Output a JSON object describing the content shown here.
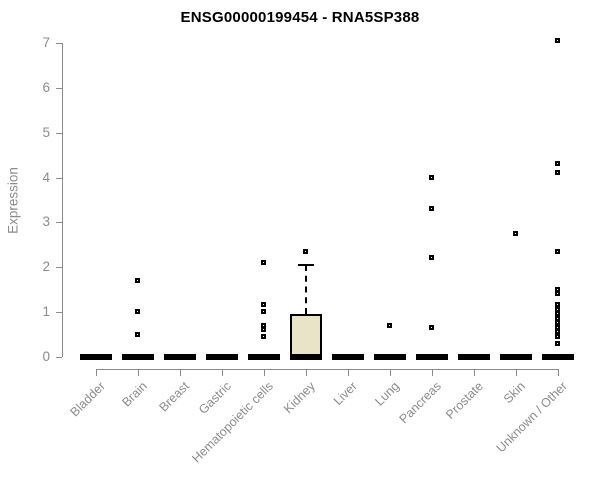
{
  "colors": {
    "box_fill": "#E9E3C8",
    "box_stroke": "#000000",
    "median": "#000000",
    "marker_stroke": "#000000",
    "marker_fill": "#ffffff",
    "axis": "#8B8B8B",
    "tick_text": "#8B8B8B",
    "title_text": "#000000"
  },
  "chart_data": {
    "type": "boxplot",
    "title": "ENSG00000199454 - RNA5SP388",
    "xlabel": "",
    "ylabel": "Expression",
    "ylim": [
      0,
      7
    ],
    "yticks": [
      0,
      1,
      2,
      3,
      4,
      5,
      6,
      7
    ],
    "grid": false,
    "legend": false,
    "categories": [
      "Bladder",
      "Brain",
      "Breast",
      "Gastric",
      "Hematopoietic cells",
      "Kidney",
      "Liver",
      "Lung",
      "Pancreas",
      "Prostate",
      "Skin",
      "Unknown / Other"
    ],
    "boxes": [
      {
        "category": "Bladder",
        "q1": 0,
        "median": 0,
        "q3": 0,
        "whisker_low": 0,
        "whisker_high": 0,
        "outliers": []
      },
      {
        "category": "Brain",
        "q1": 0,
        "median": 0,
        "q3": 0,
        "whisker_low": 0,
        "whisker_high": 0,
        "outliers": [
          1.7,
          1.0,
          0.5
        ]
      },
      {
        "category": "Breast",
        "q1": 0,
        "median": 0,
        "q3": 0,
        "whisker_low": 0,
        "whisker_high": 0,
        "outliers": []
      },
      {
        "category": "Gastric",
        "q1": 0,
        "median": 0,
        "q3": 0,
        "whisker_low": 0,
        "whisker_high": 0,
        "outliers": []
      },
      {
        "category": "Hematopoietic cells",
        "q1": 0,
        "median": 0,
        "q3": 0,
        "whisker_low": 0,
        "whisker_high": 0,
        "outliers": [
          2.1,
          1.15,
          1.0,
          0.7,
          0.6,
          0.45
        ]
      },
      {
        "category": "Kidney",
        "q1": 0,
        "median": 0,
        "q3": 0.95,
        "whisker_low": 0,
        "whisker_high": 2.05,
        "outliers": [
          2.35
        ]
      },
      {
        "category": "Liver",
        "q1": 0,
        "median": 0,
        "q3": 0,
        "whisker_low": 0,
        "whisker_high": 0,
        "outliers": []
      },
      {
        "category": "Lung",
        "q1": 0,
        "median": 0,
        "q3": 0,
        "whisker_low": 0,
        "whisker_high": 0,
        "outliers": [
          0.7
        ]
      },
      {
        "category": "Pancreas",
        "q1": 0,
        "median": 0,
        "q3": 0,
        "whisker_low": 0,
        "whisker_high": 0,
        "outliers": [
          4.0,
          3.3,
          2.2,
          0.65
        ]
      },
      {
        "category": "Prostate",
        "q1": 0,
        "median": 0,
        "q3": 0,
        "whisker_low": 0,
        "whisker_high": 0,
        "outliers": []
      },
      {
        "category": "Skin",
        "q1": 0,
        "median": 0,
        "q3": 0,
        "whisker_low": 0,
        "whisker_high": 0,
        "outliers": [
          2.75
        ]
      },
      {
        "category": "Unknown / Other",
        "q1": 0,
        "median": 0,
        "q3": 0,
        "whisker_low": 0,
        "whisker_high": 0,
        "outliers": [
          7.05,
          4.3,
          4.1,
          2.35,
          1.5,
          1.4,
          1.15,
          1.05,
          0.95,
          0.85,
          0.75,
          0.65,
          0.55,
          0.45,
          0.3
        ]
      }
    ]
  }
}
